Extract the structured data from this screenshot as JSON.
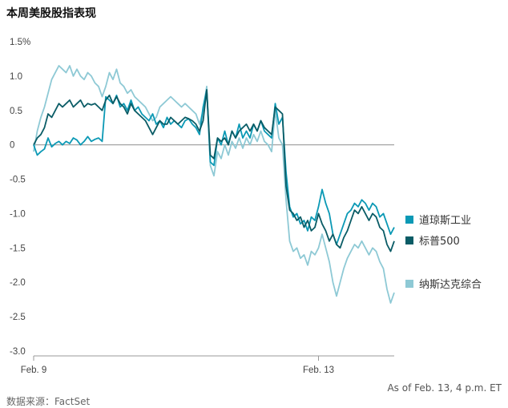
{
  "title": "本周美股股指表现",
  "source": "数据来源：FactSet",
  "as_of": "As of Feb. 13, 4 p.m. ET",
  "chart_data": {
    "type": "line",
    "title": "本周美股股指表现",
    "ylim": [
      -3.0,
      1.5
    ],
    "yticks": [
      1.5,
      1.0,
      0.5,
      0,
      -0.5,
      -1.0,
      -1.5,
      -2.0,
      -2.5,
      -3.0
    ],
    "ytick_labels": [
      "1.5%",
      "1.0",
      "0.5",
      "0",
      "-0.5",
      "-1.0",
      "-1.5",
      "-2.0",
      "-2.5",
      "-3.0"
    ],
    "xlim": [
      0,
      100
    ],
    "xtick_labels": [
      {
        "x": 0,
        "label": "Feb. 9"
      },
      {
        "x": 79,
        "label": "Feb. 13"
      }
    ],
    "grid": false,
    "zero_line": true,
    "legend_position": "right",
    "series": [
      {
        "name": "道琼斯工业",
        "color": "#0b99b5",
        "points": [
          [
            0,
            0.0
          ],
          [
            1,
            -0.15
          ],
          [
            2,
            -0.1
          ],
          [
            3,
            -0.06
          ],
          [
            4,
            0.1
          ],
          [
            5,
            -0.03
          ],
          [
            6,
            0.02
          ],
          [
            7,
            0.05
          ],
          [
            8,
            0.0
          ],
          [
            9,
            0.05
          ],
          [
            10,
            0.02
          ],
          [
            11,
            0.1
          ],
          [
            12,
            0.07
          ],
          [
            13,
            0.0
          ],
          [
            14,
            0.05
          ],
          [
            15,
            0.12
          ],
          [
            16,
            0.05
          ],
          [
            17,
            0.08
          ],
          [
            18,
            0.1
          ],
          [
            19,
            0.05
          ],
          [
            20,
            0.7
          ],
          [
            21,
            0.65
          ],
          [
            22,
            0.6
          ],
          [
            23,
            0.72
          ],
          [
            24,
            0.55
          ],
          [
            25,
            0.6
          ],
          [
            26,
            0.5
          ],
          [
            27,
            0.65
          ],
          [
            28,
            0.5
          ],
          [
            29,
            0.55
          ],
          [
            30,
            0.45
          ],
          [
            31,
            0.4
          ],
          [
            32,
            0.35
          ],
          [
            33,
            0.45
          ],
          [
            34,
            0.3
          ],
          [
            35,
            0.35
          ],
          [
            36,
            0.25
          ],
          [
            37,
            0.4
          ],
          [
            38,
            0.3
          ],
          [
            39,
            0.35
          ],
          [
            40,
            0.3
          ],
          [
            41,
            0.25
          ],
          [
            42,
            0.35
          ],
          [
            43,
            0.38
          ],
          [
            44,
            0.3
          ],
          [
            45,
            0.25
          ],
          [
            46,
            0.15
          ],
          [
            47,
            0.55
          ],
          [
            48,
            0.8
          ],
          [
            49,
            -0.25
          ],
          [
            50,
            -0.3
          ],
          [
            51,
            0.1
          ],
          [
            52,
            0.0
          ],
          [
            53,
            0.2
          ],
          [
            54,
            0.0
          ],
          [
            55,
            0.2
          ],
          [
            56,
            0.1
          ],
          [
            57,
            0.3
          ],
          [
            58,
            0.1
          ],
          [
            59,
            0.2
          ],
          [
            60,
            0.1
          ],
          [
            61,
            0.3
          ],
          [
            62,
            0.2
          ],
          [
            63,
            0.35
          ],
          [
            64,
            0.2
          ],
          [
            65,
            0.15
          ],
          [
            66,
            0.1
          ],
          [
            67,
            0.6
          ],
          [
            68,
            0.3
          ],
          [
            69,
            0.4
          ],
          [
            70,
            -0.4
          ],
          [
            71,
            -0.9
          ],
          [
            72,
            -1.05
          ],
          [
            73,
            -1.0
          ],
          [
            74,
            -1.15
          ],
          [
            75,
            -1.1
          ],
          [
            76,
            -1.25
          ],
          [
            77,
            -1.05
          ],
          [
            78,
            -1.1
          ],
          [
            79,
            -0.9
          ],
          [
            80,
            -0.65
          ],
          [
            81,
            -0.85
          ],
          [
            82,
            -1.0
          ],
          [
            83,
            -1.3
          ],
          [
            84,
            -1.45
          ],
          [
            85,
            -1.3
          ],
          [
            86,
            -1.15
          ],
          [
            87,
            -1.0
          ],
          [
            88,
            -0.95
          ],
          [
            89,
            -0.85
          ],
          [
            90,
            -0.9
          ],
          [
            91,
            -0.8
          ],
          [
            92,
            -0.85
          ],
          [
            93,
            -0.95
          ],
          [
            94,
            -0.85
          ],
          [
            95,
            -0.9
          ],
          [
            96,
            -1.05
          ],
          [
            97,
            -1.0
          ],
          [
            98,
            -1.15
          ],
          [
            99,
            -1.3
          ],
          [
            100,
            -1.2
          ]
        ]
      },
      {
        "name": "标普500",
        "color": "#0a5c66",
        "points": [
          [
            0,
            0.0
          ],
          [
            1,
            0.1
          ],
          [
            2,
            0.15
          ],
          [
            3,
            0.25
          ],
          [
            4,
            0.45
          ],
          [
            5,
            0.4
          ],
          [
            6,
            0.5
          ],
          [
            7,
            0.6
          ],
          [
            8,
            0.55
          ],
          [
            9,
            0.6
          ],
          [
            10,
            0.65
          ],
          [
            11,
            0.55
          ],
          [
            12,
            0.6
          ],
          [
            13,
            0.65
          ],
          [
            14,
            0.55
          ],
          [
            15,
            0.6
          ],
          [
            16,
            0.58
          ],
          [
            17,
            0.6
          ],
          [
            18,
            0.55
          ],
          [
            19,
            0.5
          ],
          [
            20,
            0.65
          ],
          [
            21,
            0.72
          ],
          [
            22,
            0.6
          ],
          [
            23,
            0.7
          ],
          [
            24,
            0.6
          ],
          [
            25,
            0.55
          ],
          [
            26,
            0.45
          ],
          [
            27,
            0.6
          ],
          [
            28,
            0.5
          ],
          [
            29,
            0.45
          ],
          [
            30,
            0.4
          ],
          [
            31,
            0.35
          ],
          [
            32,
            0.25
          ],
          [
            33,
            0.15
          ],
          [
            34,
            0.25
          ],
          [
            35,
            0.35
          ],
          [
            36,
            0.3
          ],
          [
            37,
            0.3
          ],
          [
            38,
            0.4
          ],
          [
            39,
            0.35
          ],
          [
            40,
            0.3
          ],
          [
            41,
            0.35
          ],
          [
            42,
            0.4
          ],
          [
            43,
            0.38
          ],
          [
            44,
            0.35
          ],
          [
            45,
            0.3
          ],
          [
            46,
            0.2
          ],
          [
            47,
            0.35
          ],
          [
            48,
            0.8
          ],
          [
            49,
            -0.15
          ],
          [
            50,
            -0.2
          ],
          [
            51,
            0.1
          ],
          [
            52,
            0.05
          ],
          [
            53,
            0.1
          ],
          [
            54,
            0.0
          ],
          [
            55,
            0.2
          ],
          [
            56,
            0.1
          ],
          [
            57,
            0.2
          ],
          [
            58,
            0.25
          ],
          [
            59,
            0.3
          ],
          [
            60,
            0.2
          ],
          [
            61,
            0.3
          ],
          [
            62,
            0.2
          ],
          [
            63,
            0.35
          ],
          [
            64,
            0.25
          ],
          [
            65,
            0.2
          ],
          [
            66,
            0.15
          ],
          [
            67,
            0.55
          ],
          [
            68,
            0.5
          ],
          [
            69,
            0.45
          ],
          [
            70,
            -0.6
          ],
          [
            71,
            -0.95
          ],
          [
            72,
            -1.0
          ],
          [
            73,
            -1.1
          ],
          [
            74,
            -1.05
          ],
          [
            75,
            -1.2
          ],
          [
            76,
            -1.1
          ],
          [
            77,
            -1.25
          ],
          [
            78,
            -1.2
          ],
          [
            79,
            -1.0
          ],
          [
            80,
            -1.15
          ],
          [
            81,
            -1.25
          ],
          [
            82,
            -1.4
          ],
          [
            83,
            -1.3
          ],
          [
            84,
            -1.45
          ],
          [
            85,
            -1.5
          ],
          [
            86,
            -1.35
          ],
          [
            87,
            -1.25
          ],
          [
            88,
            -1.1
          ],
          [
            89,
            -0.95
          ],
          [
            90,
            -1.0
          ],
          [
            91,
            -0.9
          ],
          [
            92,
            -1.0
          ],
          [
            93,
            -1.1
          ],
          [
            94,
            -1.0
          ],
          [
            95,
            -1.05
          ],
          [
            96,
            -1.2
          ],
          [
            97,
            -1.25
          ],
          [
            98,
            -1.45
          ],
          [
            99,
            -1.55
          ],
          [
            100,
            -1.4
          ]
        ]
      },
      {
        "name": "纳斯达克综合",
        "color": "#8ec9d5",
        "points": [
          [
            0,
            -0.1
          ],
          [
            1,
            0.2
          ],
          [
            2,
            0.4
          ],
          [
            3,
            0.55
          ],
          [
            4,
            0.75
          ],
          [
            5,
            0.95
          ],
          [
            6,
            1.05
          ],
          [
            7,
            1.15
          ],
          [
            8,
            1.1
          ],
          [
            9,
            1.05
          ],
          [
            10,
            1.15
          ],
          [
            11,
            1.0
          ],
          [
            12,
            1.1
          ],
          [
            13,
            1.0
          ],
          [
            14,
            0.95
          ],
          [
            15,
            1.05
          ],
          [
            16,
            1.0
          ],
          [
            17,
            0.9
          ],
          [
            18,
            0.85
          ],
          [
            19,
            0.7
          ],
          [
            20,
            0.85
          ],
          [
            21,
            1.05
          ],
          [
            22,
            0.95
          ],
          [
            23,
            1.1
          ],
          [
            24,
            0.9
          ],
          [
            25,
            0.85
          ],
          [
            26,
            0.75
          ],
          [
            27,
            0.8
          ],
          [
            28,
            0.7
          ],
          [
            29,
            0.65
          ],
          [
            30,
            0.6
          ],
          [
            31,
            0.55
          ],
          [
            32,
            0.45
          ],
          [
            33,
            0.35
          ],
          [
            34,
            0.4
          ],
          [
            35,
            0.55
          ],
          [
            36,
            0.6
          ],
          [
            37,
            0.65
          ],
          [
            38,
            0.7
          ],
          [
            39,
            0.65
          ],
          [
            40,
            0.6
          ],
          [
            41,
            0.55
          ],
          [
            42,
            0.6
          ],
          [
            43,
            0.55
          ],
          [
            44,
            0.5
          ],
          [
            45,
            0.45
          ],
          [
            46,
            0.3
          ],
          [
            47,
            0.5
          ],
          [
            48,
            0.85
          ],
          [
            49,
            -0.3
          ],
          [
            50,
            -0.45
          ],
          [
            51,
            -0.1
          ],
          [
            52,
            -0.2
          ],
          [
            53,
            0.0
          ],
          [
            54,
            -0.15
          ],
          [
            55,
            0.05
          ],
          [
            56,
            -0.05
          ],
          [
            57,
            0.1
          ],
          [
            58,
            -0.05
          ],
          [
            59,
            0.1
          ],
          [
            60,
            0.0
          ],
          [
            61,
            0.15
          ],
          [
            62,
            0.05
          ],
          [
            63,
            0.2
          ],
          [
            64,
            0.05
          ],
          [
            65,
            0.0
          ],
          [
            66,
            -0.1
          ],
          [
            67,
            0.5
          ],
          [
            68,
            0.1
          ],
          [
            69,
            0.0
          ],
          [
            70,
            -0.8
          ],
          [
            71,
            -1.4
          ],
          [
            72,
            -1.55
          ],
          [
            73,
            -1.5
          ],
          [
            74,
            -1.65
          ],
          [
            75,
            -1.6
          ],
          [
            76,
            -1.75
          ],
          [
            77,
            -1.55
          ],
          [
            78,
            -1.6
          ],
          [
            79,
            -1.5
          ],
          [
            80,
            -1.3
          ],
          [
            81,
            -1.5
          ],
          [
            82,
            -1.7
          ],
          [
            83,
            -2.0
          ],
          [
            84,
            -2.2
          ],
          [
            85,
            -2.0
          ],
          [
            86,
            -1.8
          ],
          [
            87,
            -1.65
          ],
          [
            88,
            -1.55
          ],
          [
            89,
            -1.45
          ],
          [
            90,
            -1.5
          ],
          [
            91,
            -1.4
          ],
          [
            92,
            -1.5
          ],
          [
            93,
            -1.6
          ],
          [
            94,
            -1.5
          ],
          [
            95,
            -1.55
          ],
          [
            96,
            -1.7
          ],
          [
            97,
            -1.8
          ],
          [
            98,
            -2.1
          ],
          [
            99,
            -2.3
          ],
          [
            100,
            -2.15
          ]
        ]
      }
    ]
  }
}
